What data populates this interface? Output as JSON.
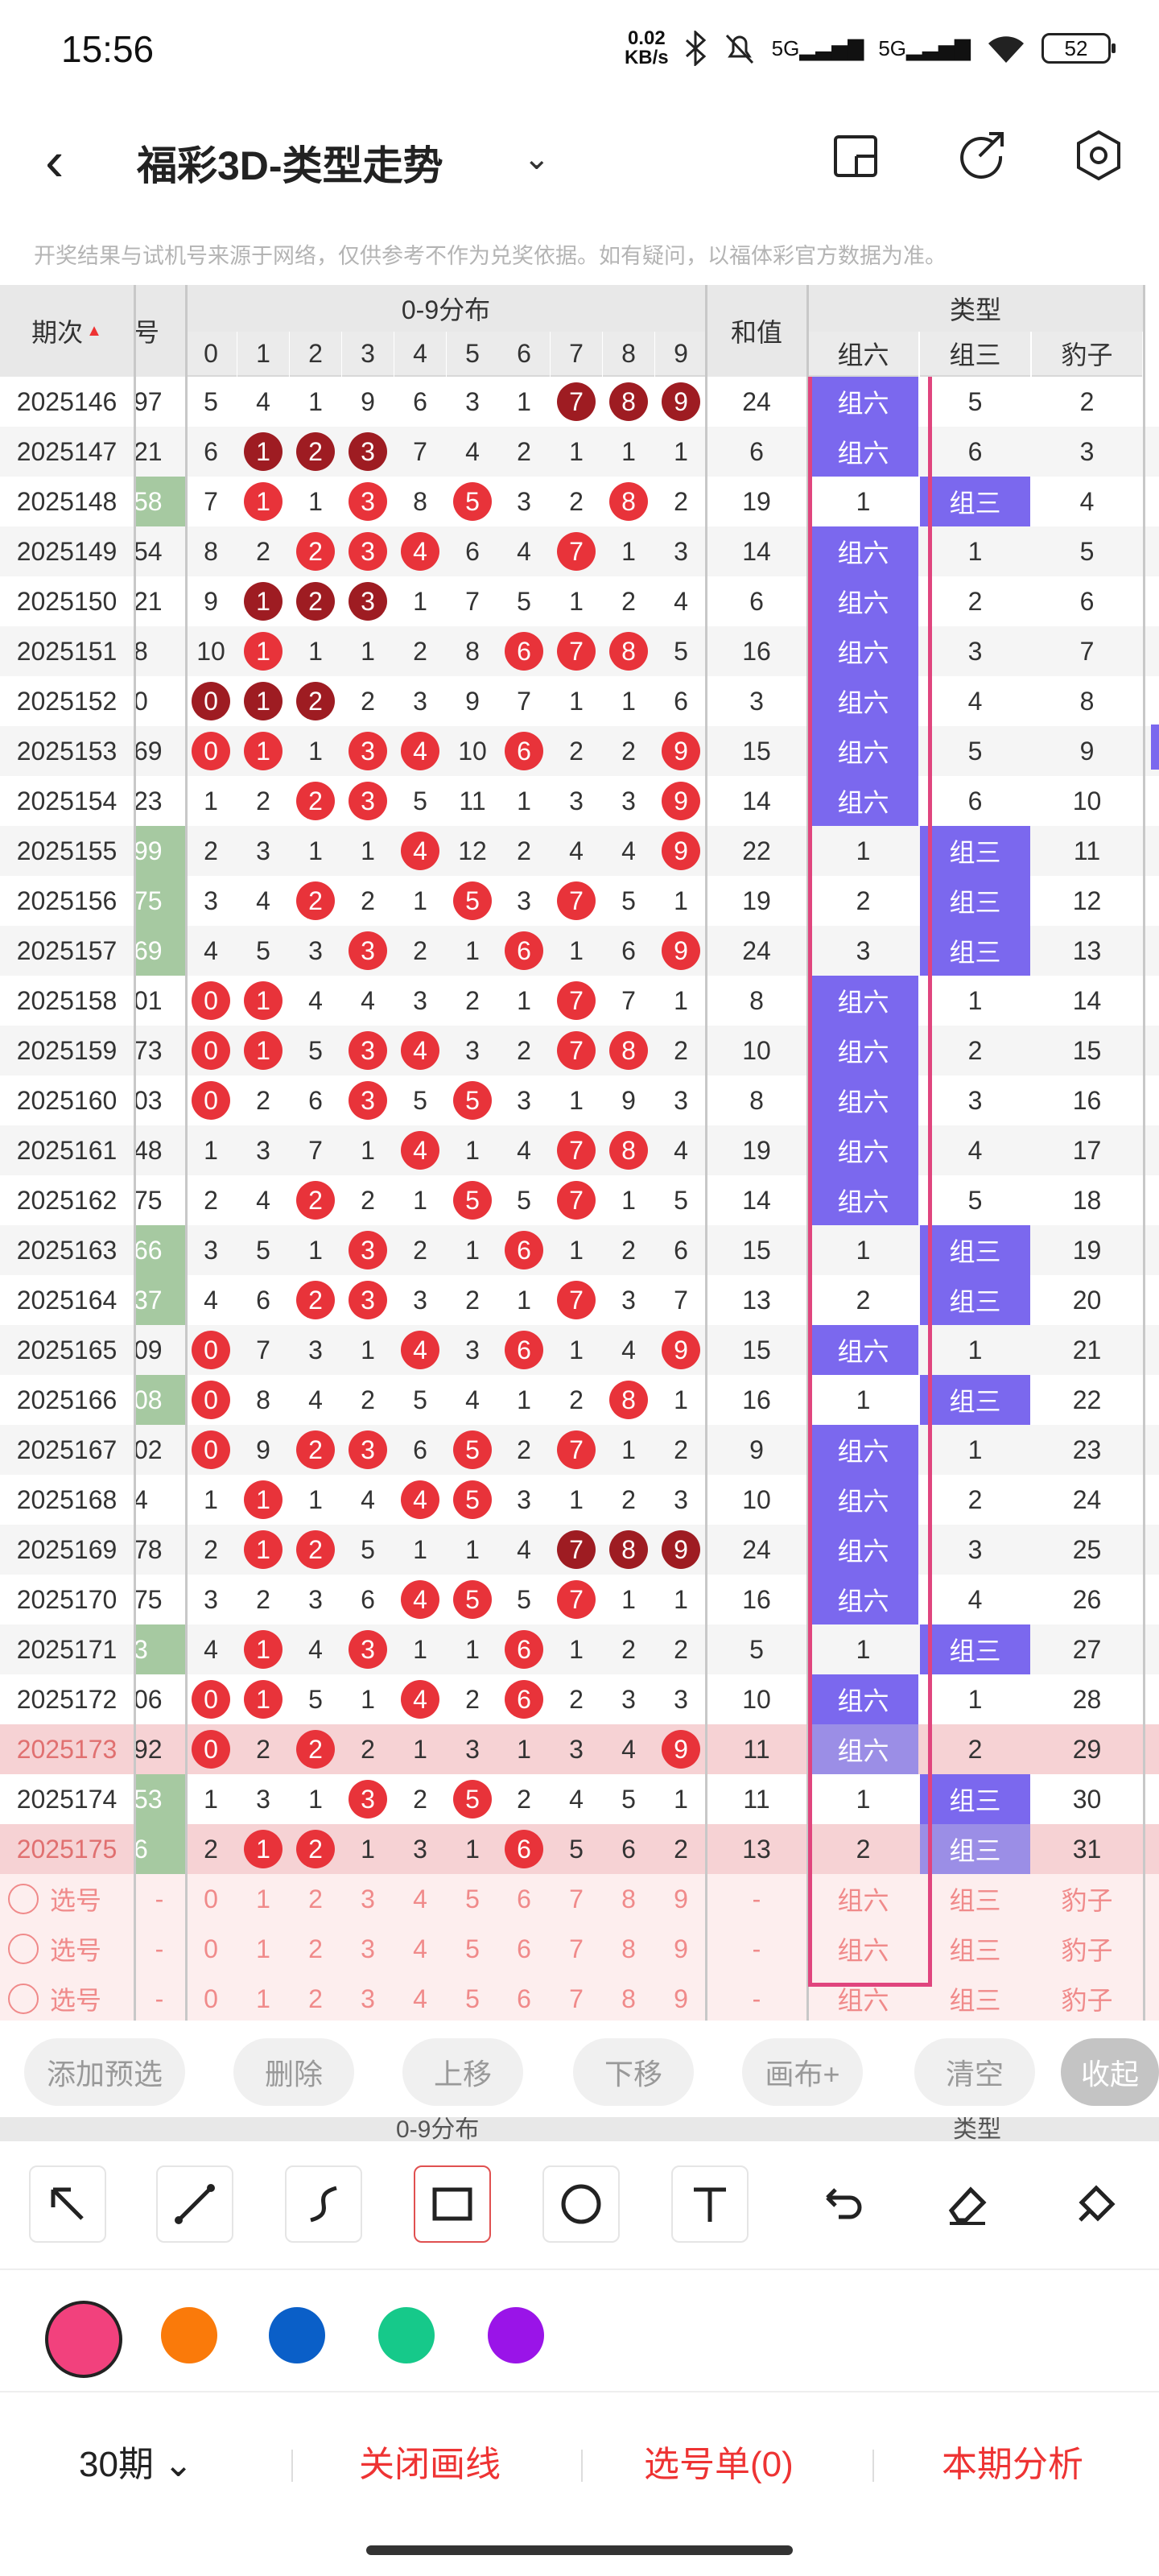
{
  "status": {
    "time": "15:56",
    "speed_value": "0.02",
    "speed_unit": "KB/s",
    "net1": "5G",
    "net2": "5G",
    "battery": "52"
  },
  "header": {
    "title": "福彩3D-类型走势"
  },
  "notice": "开奖结果与试机号来源于网络，仅供参考不作为兑奖依据。如有疑问，以福体彩官方数据为准。",
  "table": {
    "headers": {
      "period": "期次",
      "partial": "号",
      "dist": "0-9分布",
      "digits": [
        "0",
        "1",
        "2",
        "3",
        "4",
        "5",
        "6",
        "7",
        "8",
        "9"
      ],
      "sum": "和值",
      "type": "类型",
      "types": [
        "组六",
        "组三",
        "豹子"
      ]
    },
    "rows": [
      {
        "p": "2025146",
        "x": "97",
        "d": [
          "5",
          "4",
          "1",
          "9",
          "6",
          "3",
          "1",
          "7",
          "8",
          "9"
        ],
        "s": "24",
        "t": [
          "组六",
          "5",
          "2"
        ]
      },
      {
        "p": "2025147",
        "x": "21",
        "d": [
          "6",
          "1",
          "2",
          "3",
          "7",
          "4",
          "2",
          "1",
          "1",
          "1"
        ],
        "s": "6",
        "t": [
          "组六",
          "6",
          "3"
        ]
      },
      {
        "p": "2025148",
        "x": "58",
        "d": [
          "7",
          "1",
          "1",
          "3",
          "8",
          "5",
          "3",
          "2",
          "8",
          "2"
        ],
        "s": "19",
        "t": [
          "1",
          "组三",
          "4"
        ]
      },
      {
        "p": "2025149",
        "x": "54",
        "d": [
          "8",
          "2",
          "2",
          "3",
          "4",
          "6",
          "4",
          "7",
          "1",
          "3"
        ],
        "s": "14",
        "t": [
          "组六",
          "1",
          "5"
        ]
      },
      {
        "p": "2025150",
        "x": "21",
        "d": [
          "9",
          "1",
          "2",
          "3",
          "1",
          "7",
          "5",
          "1",
          "2",
          "4"
        ],
        "s": "6",
        "t": [
          "组六",
          "2",
          "6"
        ]
      },
      {
        "p": "2025151",
        "x": "8",
        "d": [
          "10",
          "1",
          "1",
          "1",
          "2",
          "8",
          "6",
          "7",
          "8",
          "5"
        ],
        "s": "16",
        "t": [
          "组六",
          "3",
          "7"
        ]
      },
      {
        "p": "2025152",
        "x": "0",
        "d": [
          "0",
          "1",
          "2",
          "2",
          "3",
          "9",
          "7",
          "1",
          "1",
          "6"
        ],
        "s": "3",
        "t": [
          "组六",
          "4",
          "8"
        ]
      },
      {
        "p": "2025153",
        "x": "69",
        "d": [
          "0",
          "1",
          "1",
          "3",
          "4",
          "10",
          "6",
          "2",
          "2",
          "9"
        ],
        "s": "15",
        "t": [
          "组六",
          "5",
          "9"
        ]
      },
      {
        "p": "2025154",
        "x": "23",
        "d": [
          "1",
          "2",
          "2",
          "3",
          "5",
          "11",
          "1",
          "3",
          "3",
          "9"
        ],
        "s": "14",
        "t": [
          "组六",
          "6",
          "10"
        ]
      },
      {
        "p": "2025155",
        "x": "99",
        "d": [
          "2",
          "3",
          "1",
          "1",
          "4",
          "12",
          "2",
          "4",
          "4",
          "9"
        ],
        "s": "22",
        "t": [
          "1",
          "组三",
          "11"
        ]
      },
      {
        "p": "2025156",
        "x": "75",
        "d": [
          "3",
          "4",
          "2",
          "2",
          "1",
          "5",
          "3",
          "7",
          "5",
          "1"
        ],
        "s": "19",
        "t": [
          "2",
          "组三",
          "12"
        ]
      },
      {
        "p": "2025157",
        "x": "69",
        "d": [
          "4",
          "5",
          "3",
          "3",
          "2",
          "1",
          "6",
          "1",
          "6",
          "9"
        ],
        "s": "24",
        "t": [
          "3",
          "组三",
          "13"
        ]
      },
      {
        "p": "2025158",
        "x": "01",
        "d": [
          "0",
          "1",
          "4",
          "4",
          "3",
          "2",
          "1",
          "7",
          "7",
          "1"
        ],
        "s": "8",
        "t": [
          "组六",
          "1",
          "14"
        ]
      },
      {
        "p": "2025159",
        "x": "73",
        "d": [
          "0",
          "1",
          "5",
          "3",
          "4",
          "3",
          "2",
          "7",
          "8",
          "2"
        ],
        "s": "10",
        "t": [
          "组六",
          "2",
          "15"
        ]
      },
      {
        "p": "2025160",
        "x": "03",
        "d": [
          "0",
          "2",
          "6",
          "3",
          "5",
          "5",
          "3",
          "1",
          "9",
          "3"
        ],
        "s": "8",
        "t": [
          "组六",
          "3",
          "16"
        ]
      },
      {
        "p": "2025161",
        "x": "48",
        "d": [
          "1",
          "3",
          "7",
          "1",
          "4",
          "1",
          "4",
          "7",
          "8",
          "4"
        ],
        "s": "19",
        "t": [
          "组六",
          "4",
          "17"
        ]
      },
      {
        "p": "2025162",
        "x": "75",
        "d": [
          "2",
          "4",
          "2",
          "2",
          "1",
          "5",
          "5",
          "7",
          "1",
          "5"
        ],
        "s": "14",
        "t": [
          "组六",
          "5",
          "18"
        ]
      },
      {
        "p": "2025163",
        "x": "66",
        "d": [
          "3",
          "5",
          "1",
          "3",
          "2",
          "1",
          "6",
          "1",
          "2",
          "6"
        ],
        "s": "15",
        "t": [
          "1",
          "组三",
          "19"
        ]
      },
      {
        "p": "2025164",
        "x": "37",
        "d": [
          "4",
          "6",
          "2",
          "3",
          "3",
          "2",
          "1",
          "7",
          "3",
          "7"
        ],
        "s": "13",
        "t": [
          "2",
          "组三",
          "20"
        ]
      },
      {
        "p": "2025165",
        "x": "09",
        "d": [
          "0",
          "7",
          "3",
          "1",
          "4",
          "3",
          "6",
          "1",
          "4",
          "9"
        ],
        "s": "15",
        "t": [
          "组六",
          "1",
          "21"
        ]
      },
      {
        "p": "2025166",
        "x": "08",
        "d": [
          "0",
          "8",
          "4",
          "2",
          "5",
          "4",
          "1",
          "2",
          "8",
          "1"
        ],
        "s": "16",
        "t": [
          "1",
          "组三",
          "22"
        ]
      },
      {
        "p": "2025167",
        "x": "02",
        "d": [
          "0",
          "9",
          "2",
          "3",
          "6",
          "5",
          "2",
          "7",
          "1",
          "2"
        ],
        "s": "9",
        "t": [
          "组六",
          "1",
          "23"
        ]
      },
      {
        "p": "2025168",
        "x": "4",
        "d": [
          "1",
          "1",
          "1",
          "4",
          "4",
          "5",
          "3",
          "1",
          "2",
          "3"
        ],
        "s": "10",
        "t": [
          "组六",
          "2",
          "24"
        ]
      },
      {
        "p": "2025169",
        "x": "78",
        "d": [
          "2",
          "1",
          "2",
          "5",
          "1",
          "1",
          "4",
          "7",
          "8",
          "9"
        ],
        "s": "24",
        "t": [
          "组六",
          "3",
          "25"
        ]
      },
      {
        "p": "2025170",
        "x": "75",
        "d": [
          "3",
          "2",
          "3",
          "6",
          "4",
          "5",
          "5",
          "7",
          "1",
          "1"
        ],
        "s": "16",
        "t": [
          "组六",
          "4",
          "26"
        ]
      },
      {
        "p": "2025171",
        "x": "3",
        "d": [
          "4",
          "1",
          "4",
          "3",
          "1",
          "1",
          "6",
          "1",
          "2",
          "2"
        ],
        "s": "5",
        "t": [
          "1",
          "组三",
          "27"
        ]
      },
      {
        "p": "2025172",
        "x": "06",
        "d": [
          "0",
          "1",
          "5",
          "1",
          "4",
          "2",
          "6",
          "2",
          "3",
          "3"
        ],
        "s": "10",
        "t": [
          "组六",
          "1",
          "28"
        ]
      },
      {
        "p": "2025173",
        "x": "92",
        "d": [
          "0",
          "2",
          "2",
          "2",
          "1",
          "3",
          "1",
          "3",
          "4",
          "9"
        ],
        "s": "11",
        "t": [
          "组六",
          "2",
          "29"
        ]
      },
      {
        "p": "2025174",
        "x": "53",
        "d": [
          "1",
          "3",
          "1",
          "3",
          "2",
          "5",
          "2",
          "4",
          "5",
          "1"
        ],
        "s": "11",
        "t": [
          "1",
          "组三",
          "30"
        ]
      },
      {
        "p": "2025175",
        "x": "6",
        "d": [
          "2",
          "1",
          "2",
          "1",
          "3",
          "1",
          "6",
          "5",
          "6",
          "2"
        ],
        "s": "13",
        "t": [
          "2",
          "组三",
          "31"
        ]
      }
    ],
    "pick_label": "选号",
    "pick_dash": "-"
  },
  "actions": [
    "添加预选",
    "删除",
    "上移",
    "下移",
    "画布+",
    "清空",
    "收起"
  ],
  "ghost": {
    "dist": "0-9分布",
    "type": "类型"
  },
  "colors": [
    "#f2417d",
    "#fa7a0a",
    "#0a5fc8",
    "#16c98a",
    "#9a14e8"
  ],
  "bottom": {
    "periods": "30期",
    "close": "关闭画线",
    "picklist": "选号单(0)",
    "analysis": "本期分析"
  }
}
